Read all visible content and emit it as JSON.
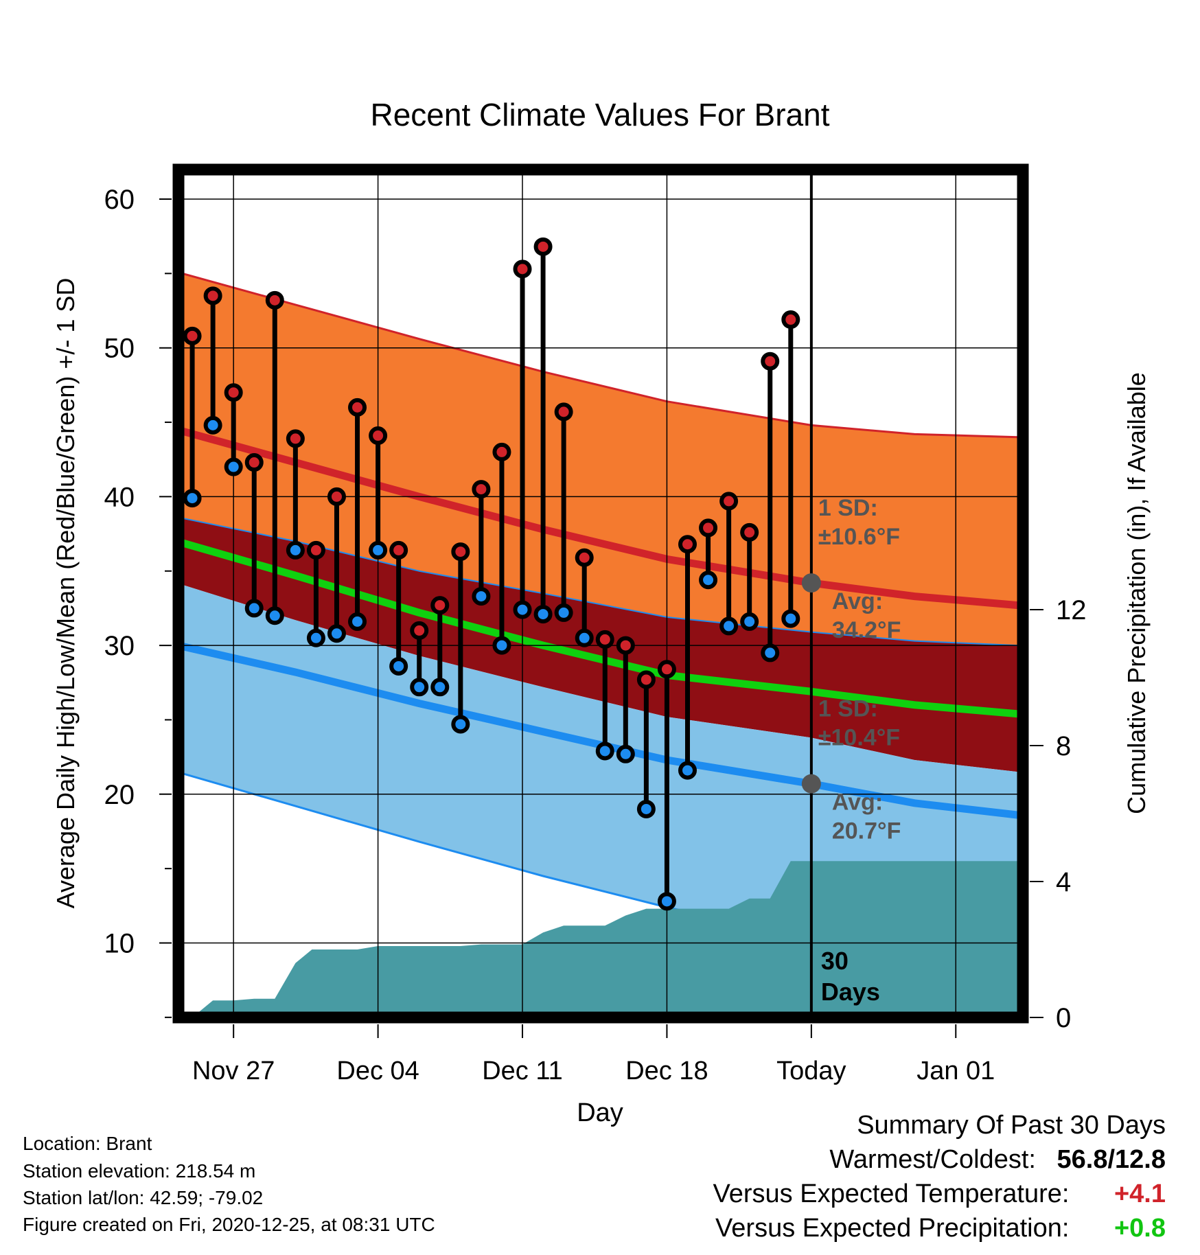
{
  "title": "Recent Climate Values For Brant",
  "chart_data": {
    "type": "line",
    "title": "Recent Climate Values For Brant",
    "xlabel": "Day",
    "ylabel_left": "Average Daily High/Low/Mean (Red/Blue/Green) +/- 1 SD",
    "ylabel_right": "Cumulative Precipitation (in), If Available",
    "x_ticks": [
      {
        "label": "Nov 27",
        "day": 3
      },
      {
        "label": "Dec 04",
        "day": 10
      },
      {
        "label": "Dec 11",
        "day": 17
      },
      {
        "label": "Dec 18",
        "day": 24
      },
      {
        "label": "Today",
        "day": 31
      },
      {
        "label": "Jan 01",
        "day": 38
      }
    ],
    "x_range_days": [
      0,
      41
    ],
    "y_left_range": [
      5,
      62
    ],
    "y_left_ticks": [
      10,
      20,
      30,
      40,
      50,
      60
    ],
    "y_right_range": [
      0,
      22
    ],
    "y_right_ticks": [
      0,
      4,
      8,
      12
    ],
    "grid": true,
    "normal_high": {
      "days": [
        0,
        6,
        12,
        18,
        24,
        31,
        36,
        41
      ],
      "mean": [
        44.6,
        42.3,
        40.0,
        37.8,
        35.8,
        34.2,
        33.3,
        32.7
      ],
      "sd": 10.6,
      "upper": [
        55.2,
        52.9,
        50.6,
        48.4,
        46.4,
        44.8,
        44.2,
        44.0
      ],
      "lower": [
        38.7,
        37.0,
        35.0,
        33.5,
        31.9,
        30.9,
        30.3,
        30.0
      ]
    },
    "normal_mean": {
      "days": [
        0,
        6,
        12,
        18,
        24,
        31,
        36,
        41
      ],
      "values": [
        37.1,
        34.7,
        32.2,
        30.0,
        28.0,
        26.9,
        26.0,
        25.4
      ]
    },
    "normal_low": {
      "days": [
        0,
        6,
        12,
        18,
        24,
        31,
        36,
        41
      ],
      "mean": [
        30.1,
        28.2,
        26.1,
        24.2,
        22.3,
        20.7,
        19.4,
        18.6
      ],
      "sd": 10.4,
      "upper": [
        34.3,
        31.7,
        29.3,
        27.2,
        25.2,
        23.8,
        22.3,
        21.5
      ],
      "lower": [
        21.6,
        19.2,
        16.8,
        14.5,
        12.4,
        10.3,
        8.6,
        7.0
      ]
    },
    "series": [
      {
        "name": "High",
        "days": [
          1,
          2,
          3,
          4,
          5,
          6,
          7,
          8,
          9,
          10,
          11,
          12,
          13,
          14,
          15,
          16,
          17,
          18,
          19,
          20,
          21,
          22,
          23,
          24,
          25,
          26,
          27,
          28,
          29,
          30
        ],
        "values": [
          50.8,
          53.5,
          47.0,
          42.3,
          53.2,
          43.9,
          36.4,
          40.0,
          46.0,
          44.1,
          36.4,
          31.0,
          32.7,
          36.3,
          40.5,
          43.0,
          55.3,
          56.8,
          45.7,
          35.9,
          30.4,
          30.0,
          27.7,
          28.4,
          36.8,
          37.9,
          39.7,
          37.6,
          49.1,
          51.9
        ]
      },
      {
        "name": "Low",
        "days": [
          1,
          2,
          3,
          4,
          5,
          6,
          7,
          8,
          9,
          10,
          11,
          12,
          13,
          14,
          15,
          16,
          17,
          18,
          19,
          20,
          21,
          22,
          23,
          24,
          25,
          26,
          27,
          28,
          29,
          30
        ],
        "values": [
          39.9,
          44.8,
          42.0,
          32.5,
          32.0,
          36.4,
          30.5,
          30.8,
          31.6,
          36.4,
          28.6,
          27.2,
          27.2,
          24.7,
          33.3,
          30.0,
          32.4,
          32.1,
          32.2,
          30.5,
          22.9,
          22.7,
          19.0,
          12.8,
          21.6,
          34.4,
          31.3,
          31.6,
          29.5,
          31.8
        ]
      }
    ],
    "precip_cumulative": {
      "days": [
        1,
        2,
        3,
        4,
        5,
        6,
        6.8,
        8,
        9,
        10,
        11,
        12,
        13,
        14,
        15,
        16,
        17,
        18,
        19,
        20,
        21,
        22,
        23,
        24,
        25,
        26,
        27,
        28,
        29,
        30,
        41
      ],
      "values": [
        0,
        0.5,
        0.5,
        0.55,
        0.55,
        1.6,
        2.0,
        2.0,
        2.0,
        2.1,
        2.1,
        2.1,
        2.1,
        2.1,
        2.15,
        2.15,
        2.15,
        2.5,
        2.7,
        2.7,
        2.7,
        3.0,
        3.2,
        3.2,
        3.2,
        3.2,
        3.2,
        3.5,
        3.5,
        4.6,
        4.6
      ]
    },
    "today_marker": {
      "label_lines": [
        "30",
        "Days"
      ]
    },
    "annotations": {
      "high_sd": [
        "1 SD:",
        "±10.6°F"
      ],
      "high_avg": [
        "Avg:",
        "34.2°F"
      ],
      "low_sd": [
        "1 SD:",
        "±10.4°F"
      ],
      "low_avg": [
        "Avg:",
        "20.7°F"
      ]
    },
    "colors": {
      "high_band": "#f47a2f",
      "high_line": "#d0232a",
      "mid_band": "#8f0e14",
      "mean_line": "#0fd10f",
      "low_band": "#82c2e8",
      "low_line": "#1d8cf0",
      "precip": "#489ba3",
      "annotation": "#555555"
    }
  },
  "info": {
    "location": "Location: Brant",
    "elevation": "Station elevation: 218.54 m",
    "latlon": "Station lat/lon: 42.59; -79.02",
    "created": "Figure created on Fri, 2020-12-25, at 08:31 UTC"
  },
  "summary": {
    "heading": "Summary Of Past 30 Days",
    "warmest_label": "Warmest/Coldest:",
    "warmest_value": "56.8/12.8",
    "temp_label": "Versus Expected Temperature:",
    "temp_value": "+4.1",
    "temp_color": "#d0232a",
    "precip_label": "Versus Expected Precipitation:",
    "precip_value": "+0.8",
    "precip_color": "#11c511"
  }
}
